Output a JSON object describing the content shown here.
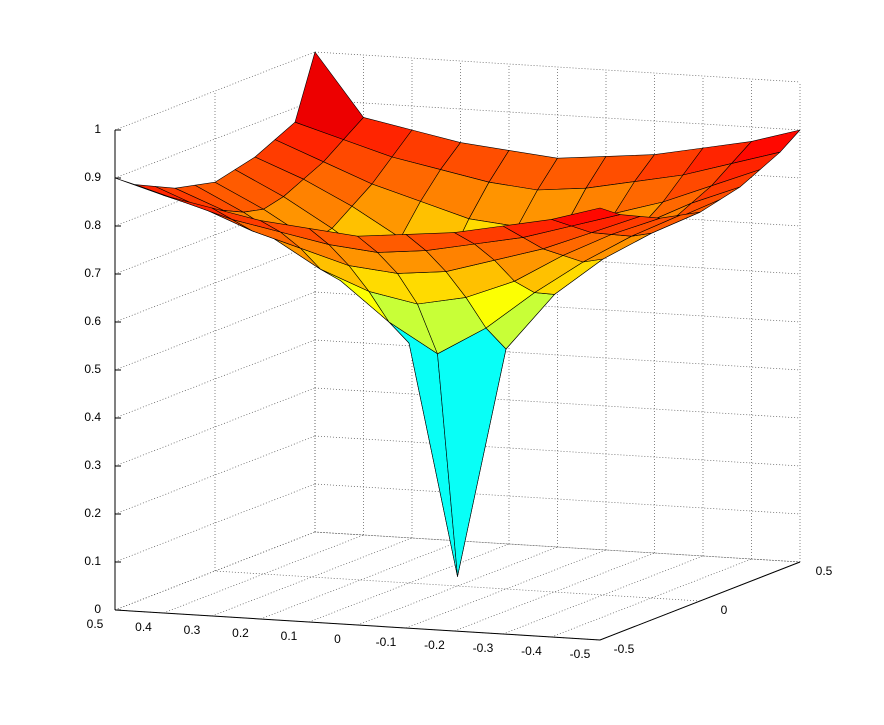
{
  "chart_data": {
    "type": "surface",
    "colormap": "jet",
    "grid": true,
    "x": [
      -0.5,
      -0.4,
      -0.3,
      -0.2,
      -0.1,
      0,
      0.1,
      0.2,
      0.3,
      0.4,
      0.5
    ],
    "y": [
      -0.5,
      -0.4,
      -0.3,
      -0.2,
      -0.1,
      0,
      0.1,
      0.2,
      0.3,
      0.4,
      0.5
    ],
    "z": [
      [
        0.9,
        0.87,
        0.85,
        0.83,
        0.82,
        0.81,
        0.82,
        0.83,
        0.85,
        0.87,
        0.9
      ],
      [
        0.87,
        0.84,
        0.81,
        0.79,
        0.77,
        0.76,
        0.77,
        0.79,
        0.81,
        0.84,
        0.87
      ],
      [
        0.85,
        0.81,
        0.77,
        0.74,
        0.71,
        0.7,
        0.71,
        0.74,
        0.77,
        0.81,
        0.85
      ],
      [
        0.83,
        0.79,
        0.74,
        0.68,
        0.64,
        0.62,
        0.64,
        0.68,
        0.74,
        0.79,
        0.83
      ],
      [
        0.82,
        0.77,
        0.71,
        0.64,
        0.56,
        0.5,
        0.56,
        0.64,
        0.71,
        0.77,
        0.82
      ],
      [
        0.81,
        0.76,
        0.7,
        0.62,
        0.5,
        0.02,
        0.5,
        0.62,
        0.7,
        0.76,
        0.81
      ],
      [
        0.82,
        0.77,
        0.71,
        0.64,
        0.56,
        0.5,
        0.56,
        0.64,
        0.71,
        0.77,
        0.82
      ],
      [
        0.83,
        0.79,
        0.74,
        0.68,
        0.64,
        0.62,
        0.64,
        0.68,
        0.74,
        0.79,
        0.83
      ],
      [
        0.85,
        0.81,
        0.77,
        0.74,
        0.71,
        0.7,
        0.71,
        0.74,
        0.77,
        0.81,
        0.85
      ],
      [
        0.87,
        0.84,
        0.81,
        0.79,
        0.77,
        0.76,
        0.77,
        0.79,
        0.81,
        0.84,
        0.87
      ],
      [
        0.9,
        0.87,
        0.85,
        0.83,
        0.82,
        0.81,
        0.82,
        0.83,
        0.85,
        0.87,
        1.0
      ]
    ],
    "xlim": [
      -0.5,
      0.5
    ],
    "xticks": [
      0.5,
      0.4,
      0.3,
      0.2,
      0.1,
      0,
      -0.1,
      -0.2,
      -0.3,
      -0.4,
      -0.5
    ],
    "ylim": [
      -0.5,
      0.5
    ],
    "yticks": [
      -0.5,
      0,
      0.5
    ],
    "zlim": [
      0,
      1
    ],
    "zticks": [
      0,
      0.1,
      0.2,
      0.3,
      0.4,
      0.5,
      0.6,
      0.7,
      0.8,
      0.9,
      1
    ]
  }
}
